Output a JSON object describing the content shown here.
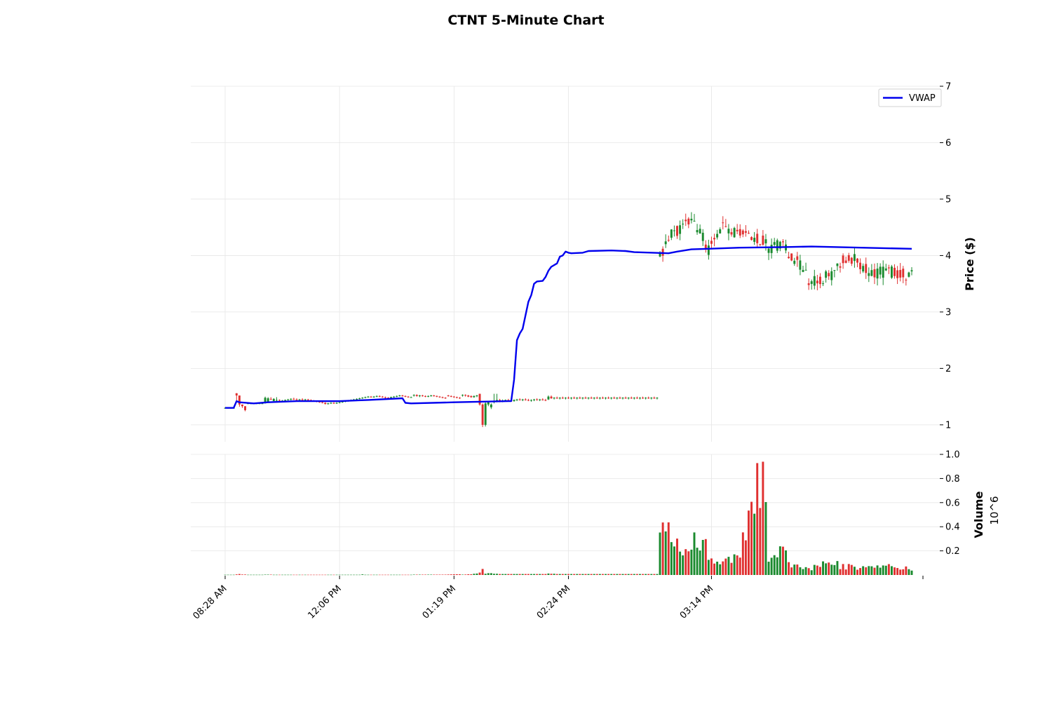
{
  "chart_data": {
    "type": "candlestick",
    "title": "CTNT 5-Minute Chart",
    "x_tick_labels": [
      "08:28 AM",
      "12:06 PM",
      "01:19 PM",
      "02:24 PM",
      "03:14 PM"
    ],
    "price_panel": {
      "ylabel": "Price ($)",
      "ylim": [
        0.7,
        7
      ],
      "yticks": [
        1,
        2,
        3,
        4,
        5,
        6,
        7
      ],
      "grid": true,
      "legend": {
        "placement": "top-right",
        "entries": [
          "VWAP"
        ]
      }
    },
    "volume_panel": {
      "ylabel": "Volume",
      "scale_label": "10^6",
      "ylim": [
        0,
        1.0
      ],
      "yticks": [
        0.2,
        0.4,
        0.6,
        0.8,
        1.0
      ],
      "ytick_labels": [
        "0.2",
        "0.4",
        "0.6",
        "0.8",
        "1.0"
      ]
    },
    "colors": {
      "up": "#1a8a2e",
      "down": "#e03030",
      "vwap": "#0000ee"
    },
    "series": [
      {
        "name": "VWAP",
        "type": "line",
        "values": [
          [
            0,
            1.3
          ],
          [
            3,
            1.3
          ],
          [
            4,
            1.42
          ],
          [
            5,
            1.4
          ],
          [
            10,
            1.38
          ],
          [
            15,
            1.4
          ],
          [
            25,
            1.42
          ],
          [
            40,
            1.42
          ],
          [
            50,
            1.44
          ],
          [
            62,
            1.47
          ],
          [
            63,
            1.39
          ],
          [
            65,
            1.38
          ],
          [
            80,
            1.4
          ],
          [
            99,
            1.42
          ],
          [
            100,
            1.42
          ],
          [
            101,
            1.8
          ],
          [
            102,
            2.5
          ],
          [
            103,
            2.62
          ],
          [
            104,
            2.7
          ],
          [
            106,
            3.18
          ],
          [
            107,
            3.3
          ],
          [
            108,
            3.5
          ],
          [
            109,
            3.54
          ],
          [
            111,
            3.55
          ],
          [
            112,
            3.62
          ],
          [
            113,
            3.73
          ],
          [
            114,
            3.8
          ],
          [
            116,
            3.86
          ],
          [
            117,
            3.98
          ],
          [
            118,
            4.0
          ],
          [
            119,
            4.07
          ],
          [
            120,
            4.05
          ],
          [
            121,
            4.04
          ],
          [
            125,
            4.05
          ],
          [
            127,
            4.08
          ],
          [
            135,
            4.09
          ],
          [
            140,
            4.08
          ],
          [
            143,
            4.06
          ],
          [
            155,
            4.04
          ],
          [
            158,
            4.07
          ],
          [
            163,
            4.11
          ],
          [
            180,
            4.14
          ],
          [
            195,
            4.15
          ],
          [
            205,
            4.16
          ],
          [
            240,
            4.12
          ]
        ]
      }
    ],
    "candles": [
      [
        1.3,
        1.31,
        1.29,
        1.3,
        0.002
      ],
      [
        1.3,
        1.31,
        1.29,
        1.3,
        0.002
      ],
      [
        1.3,
        1.3,
        1.29,
        1.3,
        0.002
      ],
      [
        1.3,
        1.31,
        1.3,
        1.3,
        0.002
      ],
      [
        1.56,
        1.56,
        1.4,
        1.52,
        0.005
      ],
      [
        1.52,
        1.52,
        1.32,
        1.36,
        0.008
      ],
      [
        1.36,
        1.36,
        1.3,
        1.33,
        0.004
      ],
      [
        1.33,
        1.33,
        1.24,
        1.26,
        0.004
      ],
      [
        1.38,
        1.39,
        1.37,
        1.38,
        0.002
      ],
      [
        1.38,
        1.39,
        1.37,
        1.38,
        0.002
      ],
      [
        1.38,
        1.39,
        1.37,
        1.38,
        0.002
      ],
      [
        1.38,
        1.39,
        1.37,
        1.38,
        0.002
      ],
      [
        1.38,
        1.39,
        1.37,
        1.38,
        0.002
      ],
      [
        1.38,
        1.39,
        1.37,
        1.38,
        0.002
      ],
      [
        1.38,
        1.5,
        1.38,
        1.48,
        0.003
      ],
      [
        1.4,
        1.49,
        1.4,
        1.47,
        0.003
      ],
      [
        1.46,
        1.49,
        1.44,
        1.45,
        0.003
      ],
      [
        1.42,
        1.47,
        1.42,
        1.46,
        0.002
      ],
      [
        1.43,
        1.49,
        1.42,
        1.44,
        0.002
      ],
      [
        1.44,
        1.45,
        1.42,
        1.43,
        0.002
      ],
      [
        1.43,
        1.44,
        1.42,
        1.43,
        0.002
      ],
      [
        1.43,
        1.45,
        1.42,
        1.44,
        0.002
      ],
      [
        1.44,
        1.46,
        1.43,
        1.45,
        0.002
      ],
      [
        1.45,
        1.47,
        1.43,
        1.46,
        0.002
      ],
      [
        1.46,
        1.48,
        1.44,
        1.45,
        0.002
      ],
      [
        1.45,
        1.47,
        1.43,
        1.44,
        0.002
      ],
      [
        1.44,
        1.46,
        1.43,
        1.45,
        0.002
      ],
      [
        1.45,
        1.47,
        1.43,
        1.44,
        0.002
      ],
      [
        1.44,
        1.46,
        1.43,
        1.45,
        0.002
      ],
      [
        1.45,
        1.46,
        1.43,
        1.44,
        0.002
      ],
      [
        1.44,
        1.45,
        1.42,
        1.43,
        0.002
      ],
      [
        1.43,
        1.44,
        1.41,
        1.42,
        0.002
      ],
      [
        1.42,
        1.43,
        1.4,
        1.41,
        0.002
      ],
      [
        1.41,
        1.42,
        1.39,
        1.4,
        0.002
      ],
      [
        1.4,
        1.41,
        1.38,
        1.39,
        0.002
      ],
      [
        1.39,
        1.4,
        1.36,
        1.37,
        0.002
      ],
      [
        1.37,
        1.39,
        1.36,
        1.38,
        0.002
      ],
      [
        1.38,
        1.4,
        1.37,
        1.39,
        0.002
      ],
      [
        1.39,
        1.4,
        1.37,
        1.38,
        0.002
      ],
      [
        1.38,
        1.4,
        1.37,
        1.39,
        0.002
      ],
      [
        1.39,
        1.41,
        1.38,
        1.4,
        0.002
      ],
      [
        1.4,
        1.42,
        1.39,
        1.41,
        0.002
      ],
      [
        1.41,
        1.43,
        1.4,
        1.42,
        0.002
      ],
      [
        1.42,
        1.44,
        1.41,
        1.43,
        0.002
      ],
      [
        1.43,
        1.45,
        1.42,
        1.44,
        0.002
      ],
      [
        1.44,
        1.46,
        1.43,
        1.45,
        0.002
      ],
      [
        1.45,
        1.47,
        1.44,
        1.46,
        0.002
      ],
      [
        1.46,
        1.48,
        1.45,
        1.47,
        0.002
      ],
      [
        1.47,
        1.49,
        1.46,
        1.48,
        0.005
      ],
      [
        1.48,
        1.5,
        1.47,
        1.49,
        0.002
      ],
      [
        1.49,
        1.51,
        1.48,
        1.5,
        0.002
      ],
      [
        1.5,
        1.51,
        1.48,
        1.49,
        0.002
      ],
      [
        1.49,
        1.51,
        1.48,
        1.5,
        0.002
      ],
      [
        1.5,
        1.52,
        1.49,
        1.51,
        0.002
      ],
      [
        1.51,
        1.52,
        1.49,
        1.5,
        0.002
      ],
      [
        1.5,
        1.51,
        1.48,
        1.49,
        0.002
      ],
      [
        1.49,
        1.5,
        1.47,
        1.48,
        0.002
      ],
      [
        1.48,
        1.49,
        1.46,
        1.47,
        0.002
      ],
      [
        1.47,
        1.5,
        1.46,
        1.49,
        0.002
      ],
      [
        1.49,
        1.51,
        1.48,
        1.5,
        0.002
      ],
      [
        1.5,
        1.52,
        1.49,
        1.51,
        0.002
      ],
      [
        1.51,
        1.53,
        1.5,
        1.52,
        0.002
      ],
      [
        1.52,
        1.53,
        1.5,
        1.51,
        0.002
      ],
      [
        1.51,
        1.52,
        1.49,
        1.5,
        0.002
      ],
      [
        1.5,
        1.51,
        1.48,
        1.49,
        0.002
      ],
      [
        1.49,
        1.5,
        1.48,
        1.49,
        0.002
      ],
      [
        1.52,
        1.54,
        1.5,
        1.53,
        0.003
      ],
      [
        1.53,
        1.54,
        1.5,
        1.51,
        0.003
      ],
      [
        1.51,
        1.53,
        1.49,
        1.52,
        0.003
      ],
      [
        1.52,
        1.53,
        1.5,
        1.51,
        0.003
      ],
      [
        1.51,
        1.52,
        1.49,
        1.5,
        0.003
      ],
      [
        1.5,
        1.52,
        1.49,
        1.51,
        0.003
      ],
      [
        1.51,
        1.53,
        1.5,
        1.52,
        0.003
      ],
      [
        1.52,
        1.53,
        1.5,
        1.51,
        0.003
      ],
      [
        1.51,
        1.52,
        1.49,
        1.5,
        0.003
      ],
      [
        1.5,
        1.51,
        1.48,
        1.49,
        0.003
      ],
      [
        1.49,
        1.5,
        1.47,
        1.48,
        0.003
      ],
      [
        1.48,
        1.49,
        1.46,
        1.47,
        0.003
      ],
      [
        1.52,
        1.53,
        1.5,
        1.51,
        0.004
      ],
      [
        1.51,
        1.52,
        1.49,
        1.5,
        0.005
      ],
      [
        1.5,
        1.51,
        1.48,
        1.49,
        0.006
      ],
      [
        1.49,
        1.5,
        1.47,
        1.48,
        0.006
      ],
      [
        1.48,
        1.49,
        1.46,
        1.47,
        0.006
      ],
      [
        1.52,
        1.54,
        1.5,
        1.53,
        0.003
      ],
      [
        1.53,
        1.54,
        1.5,
        1.52,
        0.004
      ],
      [
        1.52,
        1.53,
        1.49,
        1.5,
        0.006
      ],
      [
        1.51,
        1.52,
        1.48,
        1.49,
        0.006
      ],
      [
        1.49,
        1.52,
        1.48,
        1.51,
        0.01
      ],
      [
        1.51,
        1.53,
        1.49,
        1.52,
        0.012
      ],
      [
        1.55,
        1.55,
        1.34,
        1.36,
        0.02
      ],
      [
        1.36,
        1.38,
        0.96,
        1.0,
        0.05
      ],
      [
        1.0,
        1.4,
        0.97,
        1.38,
        0.01
      ],
      [
        1.36,
        1.42,
        1.33,
        1.4,
        0.015
      ],
      [
        1.31,
        1.38,
        1.28,
        1.36,
        0.015
      ],
      [
        1.4,
        1.55,
        1.38,
        1.42,
        0.01
      ],
      [
        1.42,
        1.55,
        1.4,
        1.44,
        0.01
      ],
      [
        1.44,
        1.46,
        1.4,
        1.42,
        0.008
      ],
      [
        1.42,
        1.45,
        1.4,
        1.43,
        0.008
      ],
      [
        1.43,
        1.45,
        1.41,
        1.44,
        0.008
      ],
      [
        1.44,
        1.46,
        1.42,
        1.43,
        0.008
      ],
      [
        1.43,
        1.45,
        1.41,
        1.42,
        0.008
      ],
      [
        1.42,
        1.45,
        1.41,
        1.44,
        0.008
      ],
      [
        1.44,
        1.46,
        1.42,
        1.45,
        0.008
      ],
      [
        1.45,
        1.47,
        1.43,
        1.44,
        0.008
      ],
      [
        1.44,
        1.46,
        1.42,
        1.45,
        0.008
      ],
      [
        1.45,
        1.47,
        1.43,
        1.44,
        0.008
      ],
      [
        1.44,
        1.46,
        1.42,
        1.43,
        0.008
      ],
      [
        1.43,
        1.45,
        1.41,
        1.44,
        0.008
      ],
      [
        1.44,
        1.46,
        1.42,
        1.45,
        0.008
      ],
      [
        1.45,
        1.47,
        1.43,
        1.44,
        0.008
      ],
      [
        1.44,
        1.46,
        1.42,
        1.45,
        0.008
      ],
      [
        1.45,
        1.47,
        1.43,
        1.44,
        0.008
      ],
      [
        1.44,
        1.46,
        1.42,
        1.43,
        0.008
      ],
      [
        1.45,
        1.52,
        1.44,
        1.5,
        0.012
      ],
      [
        1.5,
        1.52,
        1.46,
        1.47,
        0.01
      ],
      [
        1.47,
        1.49,
        1.45,
        1.48,
        0.01
      ],
      [
        1.48,
        1.5,
        1.46,
        1.47,
        0.008
      ],
      [
        1.47,
        1.49,
        1.45,
        1.48,
        0.008
      ],
      [
        1.48,
        1.5,
        1.46,
        1.47,
        0.008
      ],
      [
        1.47,
        1.49,
        1.45,
        1.48,
        0.008
      ],
      [
        1.48,
        1.5,
        1.46,
        1.47,
        0.008
      ],
      [
        1.47,
        1.49,
        1.45,
        1.48,
        0.008
      ],
      [
        1.48,
        1.5,
        1.46,
        1.47,
        0.008
      ],
      [
        1.47,
        1.49,
        1.45,
        1.48,
        0.008
      ],
      [
        1.48,
        1.5,
        1.46,
        1.47,
        0.008
      ],
      [
        1.47,
        1.49,
        1.45,
        1.48,
        0.008
      ],
      [
        1.48,
        1.5,
        1.46,
        1.47,
        0.008
      ],
      [
        1.47,
        1.49,
        1.45,
        1.48,
        0.008
      ],
      [
        1.48,
        1.5,
        1.46,
        1.47,
        0.008
      ],
      [
        1.47,
        1.49,
        1.45,
        1.48,
        0.008
      ],
      [
        1.48,
        1.5,
        1.46,
        1.47,
        0.008
      ],
      [
        1.47,
        1.49,
        1.45,
        1.48,
        0.008
      ],
      [
        1.48,
        1.5,
        1.46,
        1.47,
        0.008
      ],
      [
        1.47,
        1.49,
        1.45,
        1.48,
        0.008
      ],
      [
        1.48,
        1.5,
        1.46,
        1.47,
        0.008
      ],
      [
        1.47,
        1.49,
        1.45,
        1.48,
        0.008
      ],
      [
        1.48,
        1.5,
        1.46,
        1.47,
        0.008
      ],
      [
        1.47,
        1.49,
        1.45,
        1.48,
        0.008
      ],
      [
        1.48,
        1.5,
        1.46,
        1.47,
        0.008
      ],
      [
        1.47,
        1.49,
        1.45,
        1.48,
        0.008
      ],
      [
        1.48,
        1.5,
        1.46,
        1.47,
        0.008
      ],
      [
        1.47,
        1.49,
        1.45,
        1.48,
        0.008
      ],
      [
        1.48,
        1.5,
        1.46,
        1.47,
        0.008
      ],
      [
        1.47,
        1.49,
        1.45,
        1.48,
        0.008
      ],
      [
        1.48,
        1.5,
        1.46,
        1.47,
        0.008
      ],
      [
        1.47,
        1.49,
        1.45,
        1.48,
        0.008
      ],
      [
        1.48,
        1.5,
        1.46,
        1.47,
        0.008
      ],
      [
        1.47,
        1.49,
        1.45,
        1.48,
        0.008
      ],
      [
        1.48,
        1.5,
        1.46,
        1.47,
        0.008
      ],
      [
        1.47,
        1.49,
        1.45,
        1.48,
        0.008
      ],
      [
        1.48,
        1.5,
        1.46,
        1.47,
        0.008
      ],
      [
        1.47,
        1.49,
        1.45,
        1.48,
        0.008
      ]
    ]
  }
}
